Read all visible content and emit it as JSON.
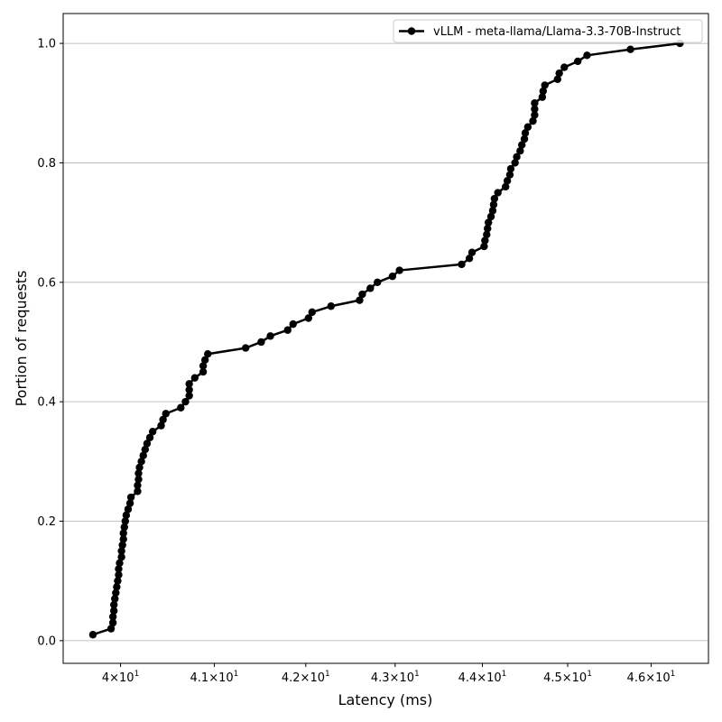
{
  "chart_data": {
    "type": "line",
    "xlabel": "Latency (ms)",
    "ylabel": "Portion of requests",
    "xscale": "log",
    "xlim": [
      39.4,
      46.7
    ],
    "ylim": [
      -0.038,
      1.05
    ],
    "grid": "y",
    "legend_position": "top-right",
    "x_ticks": [
      {
        "value": 40,
        "base": "4",
        "exp": "1"
      },
      {
        "value": 41,
        "base": "4.1",
        "exp": "1"
      },
      {
        "value": 42,
        "base": "4.2",
        "exp": "1"
      },
      {
        "value": 43,
        "base": "4.3",
        "exp": "1"
      },
      {
        "value": 44,
        "base": "4.4",
        "exp": "1"
      },
      {
        "value": 45,
        "base": "4.5",
        "exp": "1"
      },
      {
        "value": 46,
        "base": "4.6",
        "exp": "1"
      }
    ],
    "y_ticks": [
      {
        "value": 0.0,
        "label": "0.0"
      },
      {
        "value": 0.2,
        "label": "0.2"
      },
      {
        "value": 0.4,
        "label": "0.4"
      },
      {
        "value": 0.6,
        "label": "0.6"
      },
      {
        "value": 0.8,
        "label": "0.8"
      },
      {
        "value": 1.0,
        "label": "1.0"
      }
    ],
    "series": [
      {
        "name": "vLLM - meta-llama/Llama-3.3-70B-Instruct",
        "color": "#000000",
        "marker": "circle",
        "points": [
          [
            39.71,
            0.01
          ],
          [
            39.9,
            0.02
          ],
          [
            39.92,
            0.03
          ],
          [
            39.92,
            0.04
          ],
          [
            39.93,
            0.05
          ],
          [
            39.93,
            0.06
          ],
          [
            39.94,
            0.07
          ],
          [
            39.95,
            0.08
          ],
          [
            39.96,
            0.09
          ],
          [
            39.97,
            0.1
          ],
          [
            39.98,
            0.11
          ],
          [
            39.98,
            0.12
          ],
          [
            39.99,
            0.13
          ],
          [
            40.01,
            0.14
          ],
          [
            40.01,
            0.15
          ],
          [
            40.02,
            0.16
          ],
          [
            40.03,
            0.17
          ],
          [
            40.03,
            0.18
          ],
          [
            40.04,
            0.19
          ],
          [
            40.05,
            0.2
          ],
          [
            40.06,
            0.21
          ],
          [
            40.08,
            0.22
          ],
          [
            40.1,
            0.23
          ],
          [
            40.11,
            0.24
          ],
          [
            40.18,
            0.25
          ],
          [
            40.18,
            0.26
          ],
          [
            40.19,
            0.27
          ],
          [
            40.19,
            0.28
          ],
          [
            40.2,
            0.29
          ],
          [
            40.22,
            0.3
          ],
          [
            40.24,
            0.31
          ],
          [
            40.26,
            0.32
          ],
          [
            40.28,
            0.33
          ],
          [
            40.31,
            0.34
          ],
          [
            40.34,
            0.35
          ],
          [
            40.43,
            0.36
          ],
          [
            40.45,
            0.37
          ],
          [
            40.48,
            0.38
          ],
          [
            40.64,
            0.39
          ],
          [
            40.69,
            0.4
          ],
          [
            40.73,
            0.41
          ],
          [
            40.73,
            0.42
          ],
          [
            40.73,
            0.43
          ],
          [
            40.79,
            0.44
          ],
          [
            40.88,
            0.45
          ],
          [
            40.88,
            0.46
          ],
          [
            40.9,
            0.47
          ],
          [
            40.93,
            0.48
          ],
          [
            41.34,
            0.49
          ],
          [
            41.51,
            0.5
          ],
          [
            41.61,
            0.51
          ],
          [
            41.8,
            0.52
          ],
          [
            41.86,
            0.53
          ],
          [
            42.03,
            0.54
          ],
          [
            42.07,
            0.55
          ],
          [
            42.28,
            0.56
          ],
          [
            42.6,
            0.57
          ],
          [
            42.63,
            0.58
          ],
          [
            42.72,
            0.59
          ],
          [
            42.8,
            0.6
          ],
          [
            42.97,
            0.61
          ],
          [
            43.05,
            0.62
          ],
          [
            43.76,
            0.63
          ],
          [
            43.85,
            0.64
          ],
          [
            43.88,
            0.65
          ],
          [
            44.02,
            0.66
          ],
          [
            44.03,
            0.67
          ],
          [
            44.05,
            0.68
          ],
          [
            44.06,
            0.69
          ],
          [
            44.07,
            0.7
          ],
          [
            44.1,
            0.71
          ],
          [
            44.12,
            0.72
          ],
          [
            44.13,
            0.73
          ],
          [
            44.14,
            0.74
          ],
          [
            44.18,
            0.75
          ],
          [
            44.27,
            0.76
          ],
          [
            44.29,
            0.77
          ],
          [
            44.32,
            0.78
          ],
          [
            44.33,
            0.79
          ],
          [
            44.38,
            0.8
          ],
          [
            44.4,
            0.81
          ],
          [
            44.44,
            0.82
          ],
          [
            44.46,
            0.83
          ],
          [
            44.49,
            0.84
          ],
          [
            44.5,
            0.85
          ],
          [
            44.53,
            0.86
          ],
          [
            44.59,
            0.87
          ],
          [
            44.61,
            0.88
          ],
          [
            44.61,
            0.89
          ],
          [
            44.61,
            0.9
          ],
          [
            44.7,
            0.91
          ],
          [
            44.71,
            0.92
          ],
          [
            44.73,
            0.93
          ],
          [
            44.88,
            0.94
          ],
          [
            44.9,
            0.95
          ],
          [
            44.96,
            0.96
          ],
          [
            45.12,
            0.97
          ],
          [
            45.23,
            0.98
          ],
          [
            45.75,
            0.99
          ],
          [
            46.35,
            1.0
          ]
        ]
      }
    ]
  }
}
